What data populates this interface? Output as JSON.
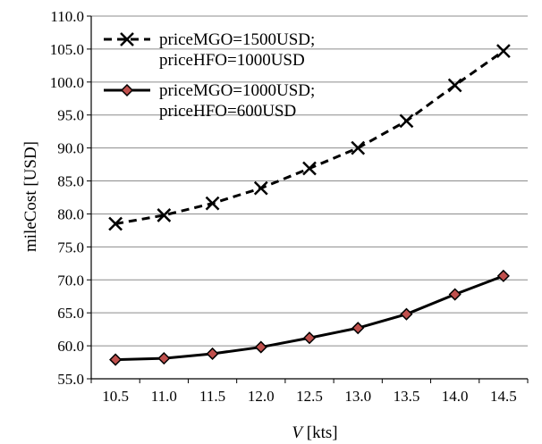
{
  "chart_data": {
    "type": "line",
    "title": "",
    "xlabel_var": "V",
    "xlabel_unit": " [kts]",
    "ylabel": "mileCost [USD]",
    "ylim": [
      55.0,
      110.0
    ],
    "ystep": 5.0,
    "x": [
      "10.5",
      "11.0",
      "11.5",
      "12.0",
      "12.5",
      "13.0",
      "13.5",
      "14.0",
      "14.5"
    ],
    "grid": "horizontal",
    "legend_position": "top-left",
    "series": [
      {
        "name_line1": "priceMGO=1500USD;",
        "name_line2": "priceHFO=1000USD",
        "values": [
          78.5,
          79.8,
          81.6,
          83.9,
          86.9,
          90.0,
          94.1,
          99.5,
          104.7
        ],
        "style": "dashed",
        "marker": "x",
        "color": "#000000"
      },
      {
        "name_line1": "priceMGO=1000USD;",
        "name_line2": "priceHFO=600USD",
        "values": [
          57.9,
          58.1,
          58.8,
          59.8,
          61.2,
          62.7,
          64.8,
          67.8,
          70.6
        ],
        "style": "solid",
        "marker": "diamond",
        "color": "#000000",
        "marker_fill": "#c0504d"
      }
    ]
  }
}
